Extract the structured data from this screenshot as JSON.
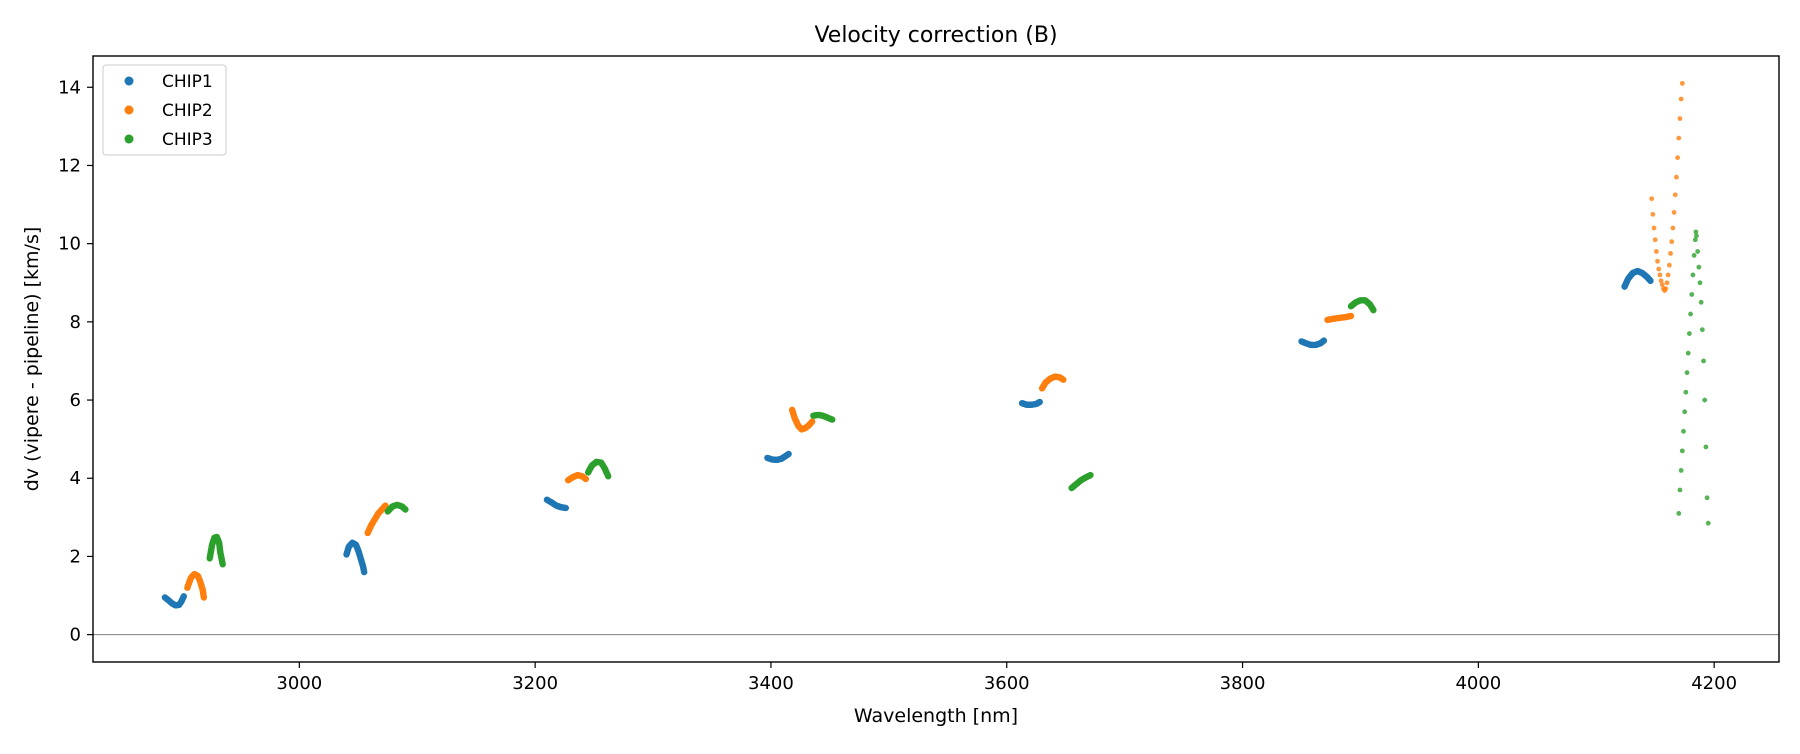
{
  "chart_data": {
    "type": "scatter",
    "title": "Velocity correction (B)",
    "xlabel": "Wavelength [nm]",
    "ylabel": "dv (vipere - pipeline) [km/s]",
    "xlim": [
      2825,
      4255
    ],
    "ylim": [
      -0.7,
      14.8
    ],
    "xticks": [
      3000,
      3200,
      3400,
      3600,
      3800,
      4000,
      4200
    ],
    "yticks": [
      0,
      2,
      4,
      6,
      8,
      10,
      12,
      14
    ],
    "reference_line_y": 0,
    "legend_position": "top-left",
    "series": [
      {
        "name": "CHIP1",
        "color": "#1f77b4",
        "segments": [
          {
            "points": [
              [
                2886,
                0.95
              ],
              [
                2889,
                0.88
              ],
              [
                2892,
                0.8
              ],
              [
                2895,
                0.75
              ],
              [
                2898,
                0.76
              ],
              [
                2900,
                0.85
              ],
              [
                2902,
                0.98
              ]
            ]
          },
          {
            "points": [
              [
                3040,
                2.05
              ],
              [
                3042,
                2.25
              ],
              [
                3045,
                2.35
              ],
              [
                3048,
                2.3
              ],
              [
                3050,
                2.15
              ],
              [
                3052,
                1.95
              ],
              [
                3054,
                1.75
              ],
              [
                3055,
                1.6
              ]
            ]
          },
          {
            "points": [
              [
                3210,
                3.45
              ],
              [
                3214,
                3.38
              ],
              [
                3218,
                3.3
              ],
              [
                3222,
                3.26
              ],
              [
                3226,
                3.24
              ]
            ]
          },
          {
            "points": [
              [
                3397,
                4.52
              ],
              [
                3401,
                4.48
              ],
              [
                3405,
                4.47
              ],
              [
                3409,
                4.5
              ],
              [
                3412,
                4.56
              ],
              [
                3415,
                4.62
              ]
            ]
          },
          {
            "points": [
              [
                3613,
                5.92
              ],
              [
                3617,
                5.88
              ],
              [
                3621,
                5.88
              ],
              [
                3625,
                5.9
              ],
              [
                3628,
                5.95
              ]
            ]
          },
          {
            "points": [
              [
                3850,
                7.5
              ],
              [
                3854,
                7.45
              ],
              [
                3858,
                7.41
              ],
              [
                3862,
                7.41
              ],
              [
                3866,
                7.45
              ],
              [
                3869,
                7.52
              ]
            ]
          },
          {
            "points": [
              [
                4124,
                8.9
              ],
              [
                4127,
                9.1
              ],
              [
                4131,
                9.25
              ],
              [
                4135,
                9.3
              ],
              [
                4139,
                9.25
              ],
              [
                4143,
                9.15
              ],
              [
                4146,
                9.05
              ]
            ]
          }
        ]
      },
      {
        "name": "CHIP2",
        "color": "#ff7f0e",
        "segments": [
          {
            "points": [
              [
                2905,
                1.2
              ],
              [
                2908,
                1.45
              ],
              [
                2911,
                1.55
              ],
              [
                2914,
                1.5
              ],
              [
                2916,
                1.35
              ],
              [
                2918,
                1.15
              ],
              [
                2919,
                0.95
              ]
            ]
          },
          {
            "points": [
              [
                3058,
                2.6
              ],
              [
                3061,
                2.8
              ],
              [
                3064,
                2.95
              ],
              [
                3067,
                3.1
              ],
              [
                3070,
                3.2
              ],
              [
                3073,
                3.3
              ]
            ]
          },
          {
            "points": [
              [
                3228,
                3.95
              ],
              [
                3232,
                4.03
              ],
              [
                3236,
                4.08
              ],
              [
                3240,
                4.05
              ],
              [
                3243,
                3.98
              ]
            ]
          },
          {
            "points": [
              [
                3418,
                5.75
              ],
              [
                3420,
                5.55
              ],
              [
                3423,
                5.35
              ],
              [
                3426,
                5.25
              ],
              [
                3429,
                5.28
              ],
              [
                3432,
                5.35
              ],
              [
                3435,
                5.45
              ]
            ]
          },
          {
            "points": [
              [
                3630,
                6.3
              ],
              [
                3633,
                6.45
              ],
              [
                3637,
                6.55
              ],
              [
                3641,
                6.6
              ],
              [
                3645,
                6.58
              ],
              [
                3648,
                6.52
              ]
            ]
          },
          {
            "points": [
              [
                3872,
                8.05
              ],
              [
                3877,
                8.08
              ],
              [
                3882,
                8.1
              ],
              [
                3887,
                8.12
              ],
              [
                3892,
                8.15
              ]
            ]
          },
          {
            "points": [
              [
                4147,
                11.15
              ],
              [
                4148,
                10.75
              ],
              [
                4149,
                10.4
              ],
              [
                4150,
                10.1
              ],
              [
                4151,
                9.8
              ],
              [
                4152,
                9.55
              ],
              [
                4153,
                9.35
              ],
              [
                4154,
                9.2
              ],
              [
                4155,
                9.05
              ],
              [
                4156,
                8.95
              ],
              [
                4157,
                8.85
              ],
              [
                4158,
                8.8
              ],
              [
                4159,
                8.85
              ],
              [
                4160,
                9.0
              ],
              [
                4161,
                9.2
              ],
              [
                4162,
                9.45
              ],
              [
                4163,
                9.75
              ],
              [
                4164,
                10.05
              ],
              [
                4165,
                10.4
              ],
              [
                4166,
                10.8
              ],
              [
                4167,
                11.25
              ],
              [
                4168,
                11.7
              ],
              [
                4169,
                12.2
              ],
              [
                4170,
                12.7
              ],
              [
                4171,
                13.2
              ],
              [
                4172,
                13.7
              ],
              [
                4173,
                14.1
              ]
            ]
          }
        ]
      },
      {
        "name": "CHIP3",
        "color": "#2ca02c",
        "segments": [
          {
            "points": [
              [
                2924,
                1.95
              ],
              [
                2926,
                2.3
              ],
              [
                2928,
                2.48
              ],
              [
                2930,
                2.5
              ],
              [
                2932,
                2.35
              ],
              [
                2933,
                2.1
              ],
              [
                2935,
                1.8
              ]
            ]
          },
          {
            "points": [
              [
                3075,
                3.15
              ],
              [
                3079,
                3.28
              ],
              [
                3083,
                3.32
              ],
              [
                3087,
                3.28
              ],
              [
                3090,
                3.2
              ]
            ]
          },
          {
            "points": [
              [
                3245,
                4.15
              ],
              [
                3248,
                4.32
              ],
              [
                3252,
                4.42
              ],
              [
                3256,
                4.4
              ],
              [
                3259,
                4.25
              ],
              [
                3262,
                4.05
              ]
            ]
          },
          {
            "points": [
              [
                3436,
                5.6
              ],
              [
                3440,
                5.62
              ],
              [
                3444,
                5.6
              ],
              [
                3448,
                5.55
              ],
              [
                3452,
                5.5
              ]
            ]
          },
          {
            "points": [
              [
                3655,
                3.75
              ],
              [
                3659,
                3.85
              ],
              [
                3663,
                3.95
              ],
              [
                3667,
                4.02
              ],
              [
                3671,
                4.08
              ]
            ]
          },
          {
            "points": [
              [
                3892,
                8.4
              ],
              [
                3896,
                8.5
              ],
              [
                3900,
                8.55
              ],
              [
                3904,
                8.55
              ],
              [
                3908,
                8.45
              ],
              [
                3911,
                8.3
              ]
            ]
          },
          {
            "points": [
              [
                4170,
                3.1
              ],
              [
                4171,
                3.7
              ],
              [
                4172,
                4.2
              ],
              [
                4173,
                4.7
              ],
              [
                4174,
                5.2
              ],
              [
                4175,
                5.7
              ],
              [
                4176,
                6.2
              ],
              [
                4177,
                6.7
              ],
              [
                4178,
                7.2
              ],
              [
                4179,
                7.7
              ],
              [
                4180,
                8.2
              ],
              [
                4181,
                8.7
              ],
              [
                4182,
                9.2
              ],
              [
                4183,
                9.7
              ],
              [
                4184,
                10.1
              ],
              [
                4184.5,
                10.3
              ],
              [
                4185,
                10.2
              ],
              [
                4186,
                9.8
              ],
              [
                4187,
                9.4
              ],
              [
                4188,
                9.0
              ],
              [
                4189,
                8.5
              ],
              [
                4190,
                7.8
              ],
              [
                4191,
                7.0
              ],
              [
                4192,
                6.0
              ],
              [
                4193,
                4.8
              ],
              [
                4194,
                3.5
              ],
              [
                4195,
                2.85
              ]
            ]
          }
        ]
      }
    ]
  }
}
